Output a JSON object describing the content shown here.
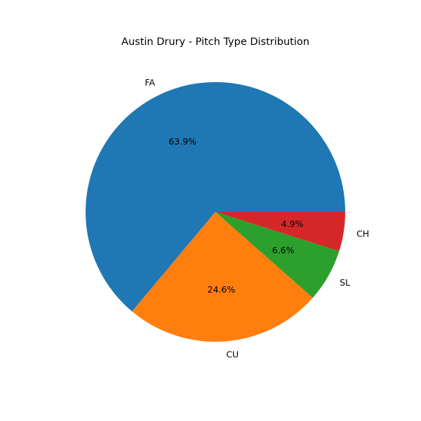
{
  "chart_data": {
    "type": "pie",
    "title": "Austin Drury - Pitch Type Distribution",
    "start_angle_deg": 0,
    "direction": "counterclockwise",
    "slices": [
      {
        "label": "FA",
        "value": 63.9,
        "pct_label": "63.9%",
        "color": "#1f77b4"
      },
      {
        "label": "CU",
        "value": 24.6,
        "pct_label": "24.6%",
        "color": "#ff7f0e"
      },
      {
        "label": "SL",
        "value": 6.6,
        "pct_label": "6.6%",
        "color": "#2ca02c"
      },
      {
        "label": "CH",
        "value": 4.9,
        "pct_label": "4.9%",
        "color": "#d62728"
      }
    ]
  }
}
